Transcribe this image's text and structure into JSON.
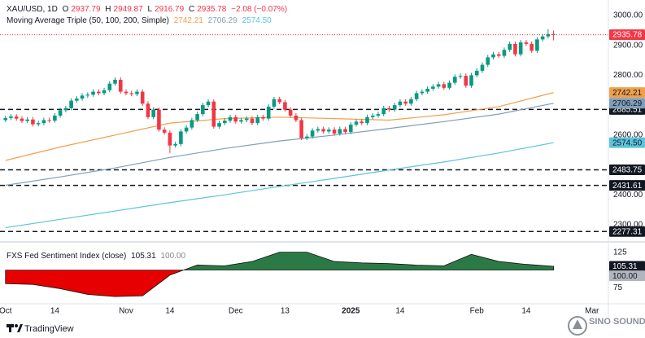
{
  "header": {
    "symbol": "XAU/USD, 1D",
    "ohlc_keys": [
      "O",
      "H",
      "L",
      "C"
    ],
    "change": "−2.08 (−0.07%)"
  },
  "chart_data": [
    {
      "type": "candlestick",
      "indicator": "Moving Average Triple (50, 100, 200, Simple)",
      "up_color": "#089981",
      "down_color": "#f23645",
      "ohlc": [
        [
          2650,
          2665,
          2643,
          2657
        ],
        [
          2657,
          2670,
          2650,
          2662
        ],
        [
          2662,
          2670,
          2648,
          2655
        ],
        [
          2655,
          2663,
          2640,
          2647
        ],
        [
          2647,
          2660,
          2640,
          2652
        ],
        [
          2652,
          2660,
          2629,
          2636
        ],
        [
          2636,
          2648,
          2629,
          2640
        ],
        [
          2640,
          2658,
          2633,
          2650
        ],
        [
          2650,
          2658,
          2641,
          2648
        ],
        [
          2648,
          2673,
          2641,
          2665
        ],
        [
          2665,
          2691,
          2658,
          2683
        ],
        [
          2683,
          2698,
          2676,
          2690
        ],
        [
          2690,
          2723,
          2683,
          2715
        ],
        [
          2715,
          2730,
          2708,
          2722
        ],
        [
          2722,
          2740,
          2715,
          2732
        ],
        [
          2732,
          2743,
          2725,
          2735
        ],
        [
          2735,
          2753,
          2728,
          2745
        ],
        [
          2745,
          2753,
          2733,
          2740
        ],
        [
          2740,
          2758,
          2733,
          2750
        ],
        [
          2750,
          2780,
          2743,
          2772
        ],
        [
          2772,
          2793,
          2765,
          2785
        ],
        [
          2785,
          2793,
          2738,
          2745
        ],
        [
          2745,
          2753,
          2733,
          2740
        ],
        [
          2740,
          2748,
          2730,
          2737
        ],
        [
          2737,
          2753,
          2730,
          2745
        ],
        [
          2745,
          2753,
          2698,
          2705
        ],
        [
          2705,
          2713,
          2653,
          2660
        ],
        [
          2660,
          2693,
          2653,
          2685
        ],
        [
          2685,
          2693,
          2611,
          2618
        ],
        [
          2618,
          2626,
          2601,
          2608
        ],
        [
          2608,
          2616,
          2540,
          2565
        ],
        [
          2565,
          2578,
          2558,
          2570
        ],
        [
          2570,
          2620,
          2563,
          2612
        ],
        [
          2612,
          2633,
          2605,
          2625
        ],
        [
          2625,
          2658,
          2618,
          2650
        ],
        [
          2650,
          2678,
          2643,
          2670
        ],
        [
          2670,
          2708,
          2663,
          2700
        ],
        [
          2700,
          2720,
          2693,
          2712
        ],
        [
          2712,
          2720,
          2621,
          2628
        ],
        [
          2628,
          2648,
          2621,
          2640
        ],
        [
          2640,
          2656,
          2633,
          2648
        ],
        [
          2648,
          2668,
          2641,
          2660
        ],
        [
          2660,
          2668,
          2638,
          2645
        ],
        [
          2645,
          2658,
          2638,
          2650
        ],
        [
          2650,
          2663,
          2643,
          2655
        ],
        [
          2655,
          2663,
          2633,
          2640
        ],
        [
          2640,
          2668,
          2633,
          2660
        ],
        [
          2660,
          2668,
          2648,
          2655
        ],
        [
          2655,
          2703,
          2648,
          2695
        ],
        [
          2695,
          2728,
          2688,
          2720
        ],
        [
          2720,
          2728,
          2703,
          2710
        ],
        [
          2710,
          2718,
          2678,
          2685
        ],
        [
          2685,
          2693,
          2658,
          2665
        ],
        [
          2665,
          2673,
          2643,
          2650
        ],
        [
          2650,
          2658,
          2583,
          2590
        ],
        [
          2590,
          2603,
          2583,
          2595
        ],
        [
          2595,
          2623,
          2588,
          2615
        ],
        [
          2615,
          2628,
          2608,
          2620
        ],
        [
          2620,
          2628,
          2605,
          2612
        ],
        [
          2612,
          2626,
          2605,
          2618
        ],
        [
          2618,
          2626,
          2598,
          2605
        ],
        [
          2605,
          2628,
          2598,
          2620
        ],
        [
          2620,
          2628,
          2603,
          2610
        ],
        [
          2610,
          2643,
          2603,
          2635
        ],
        [
          2635,
          2653,
          2628,
          2645
        ],
        [
          2645,
          2653,
          2633,
          2640
        ],
        [
          2640,
          2668,
          2633,
          2660
        ],
        [
          2660,
          2673,
          2653,
          2665
        ],
        [
          2665,
          2678,
          2658,
          2670
        ],
        [
          2670,
          2698,
          2663,
          2690
        ],
        [
          2690,
          2698,
          2678,
          2685
        ],
        [
          2685,
          2708,
          2678,
          2700
        ],
        [
          2700,
          2720,
          2693,
          2712
        ],
        [
          2712,
          2720,
          2698,
          2705
        ],
        [
          2705,
          2728,
          2698,
          2720
        ],
        [
          2720,
          2748,
          2713,
          2740
        ],
        [
          2740,
          2753,
          2733,
          2745
        ],
        [
          2745,
          2763,
          2738,
          2755
        ],
        [
          2755,
          2770,
          2748,
          2762
        ],
        [
          2762,
          2778,
          2755,
          2770
        ],
        [
          2770,
          2778,
          2751,
          2758
        ],
        [
          2758,
          2783,
          2751,
          2775
        ],
        [
          2775,
          2803,
          2768,
          2795
        ],
        [
          2795,
          2806,
          2788,
          2798
        ],
        [
          2798,
          2806,
          2758,
          2765
        ],
        [
          2765,
          2808,
          2758,
          2800
        ],
        [
          2800,
          2823,
          2793,
          2815
        ],
        [
          2815,
          2843,
          2808,
          2835
        ],
        [
          2835,
          2868,
          2828,
          2860
        ],
        [
          2860,
          2878,
          2853,
          2870
        ],
        [
          2870,
          2878,
          2858,
          2865
        ],
        [
          2865,
          2893,
          2858,
          2885
        ],
        [
          2885,
          2913,
          2878,
          2905
        ],
        [
          2905,
          2913,
          2863,
          2870
        ],
        [
          2870,
          2918,
          2863,
          2910
        ],
        [
          2910,
          2918,
          2898,
          2905
        ],
        [
          2905,
          2913,
          2875,
          2882
        ],
        [
          2882,
          2928,
          2875,
          2920
        ],
        [
          2920,
          2938,
          2913,
          2930
        ],
        [
          2930,
          2954,
          2923,
          2937.86
        ],
        [
          2937.79,
          2949.87,
          2916.79,
          2935.78
        ]
      ],
      "series": [
        {
          "color": "#f0a04b",
          "x": [
            0,
            10,
            20,
            30,
            40,
            50,
            60,
            70,
            80,
            90,
            100
          ],
          "values": [
            2515,
            2560,
            2600,
            2640,
            2655,
            2660,
            2655,
            2650,
            2668,
            2695,
            2742.21
          ],
          "value_labels": [
            null,
            null,
            null,
            null,
            null,
            null,
            null,
            null,
            null,
            null,
            "2742.21"
          ]
        },
        {
          "color": "#7f9fb8",
          "x": [
            0,
            10,
            20,
            30,
            40,
            50,
            60,
            70,
            80,
            90,
            100
          ],
          "values": [
            2432,
            2460,
            2490,
            2525,
            2555,
            2580,
            2600,
            2622,
            2645,
            2670,
            2706.29
          ],
          "value_labels": [
            null,
            null,
            null,
            null,
            null,
            null,
            null,
            null,
            null,
            null,
            "2706.29"
          ]
        },
        {
          "color": "#5cc4dc",
          "x": [
            0,
            10,
            20,
            30,
            40,
            50,
            60,
            70,
            80,
            90,
            100
          ],
          "values": [
            2290,
            2318,
            2346,
            2374,
            2400,
            2428,
            2455,
            2483,
            2510,
            2540,
            2574.5
          ],
          "value_labels": [
            null,
            null,
            null,
            null,
            null,
            null,
            null,
            null,
            null,
            null,
            "2574.50"
          ]
        }
      ],
      "levels": [
        2685.51,
        2483.75,
        2431.61,
        2277.31
      ],
      "level_color": "#131722",
      "xlim": [
        -1,
        110
      ],
      "xticks": [
        {
          "value": 0,
          "label": "Oct"
        },
        {
          "value": 9,
          "label": "14"
        },
        {
          "value": 22,
          "label": "Nov"
        },
        {
          "value": 30,
          "label": "14"
        },
        {
          "value": 42,
          "label": "Dec"
        },
        {
          "value": 51,
          "label": "13"
        },
        {
          "value": 63,
          "label": "2025"
        },
        {
          "value": 72,
          "label": "14"
        },
        {
          "value": 86,
          "label": "Feb"
        },
        {
          "value": 95,
          "label": "14"
        },
        {
          "value": 107,
          "label": "Mar"
        }
      ],
      "ylim": [
        2248,
        3030
      ],
      "yticks": [
        {
          "value": 3000,
          "label": "3000.00"
        },
        {
          "value": 2900,
          "label": "2900.00"
        },
        {
          "value": 2800,
          "label": "2800.00"
        },
        {
          "value": 2600,
          "label": "2600.00"
        },
        {
          "value": 2400,
          "label": "2400.00"
        },
        {
          "value": 2300,
          "label": "2300.00"
        }
      ]
    },
    {
      "type": "area",
      "title": "FXS Fed Sentiment Index (close)",
      "x": [
        0,
        5,
        10,
        15,
        20,
        25,
        30,
        35,
        40,
        45,
        50,
        55,
        60,
        65,
        70,
        75,
        80,
        85,
        90,
        95,
        100
      ],
      "values": [
        81,
        80,
        74,
        66,
        63,
        64,
        93,
        107,
        106,
        112,
        125,
        125,
        112,
        110,
        109,
        107,
        106,
        122,
        112,
        108,
        105.31
      ],
      "reference": {
        "value": 100,
        "label": "100.00"
      },
      "up_color": "#2b7a46",
      "down_color": "#e60000",
      "ylim": [
        54,
        136
      ],
      "yticks": [
        125,
        75
      ]
    }
  ],
  "brand": "TradingView",
  "watermark": "SINO SOUND"
}
